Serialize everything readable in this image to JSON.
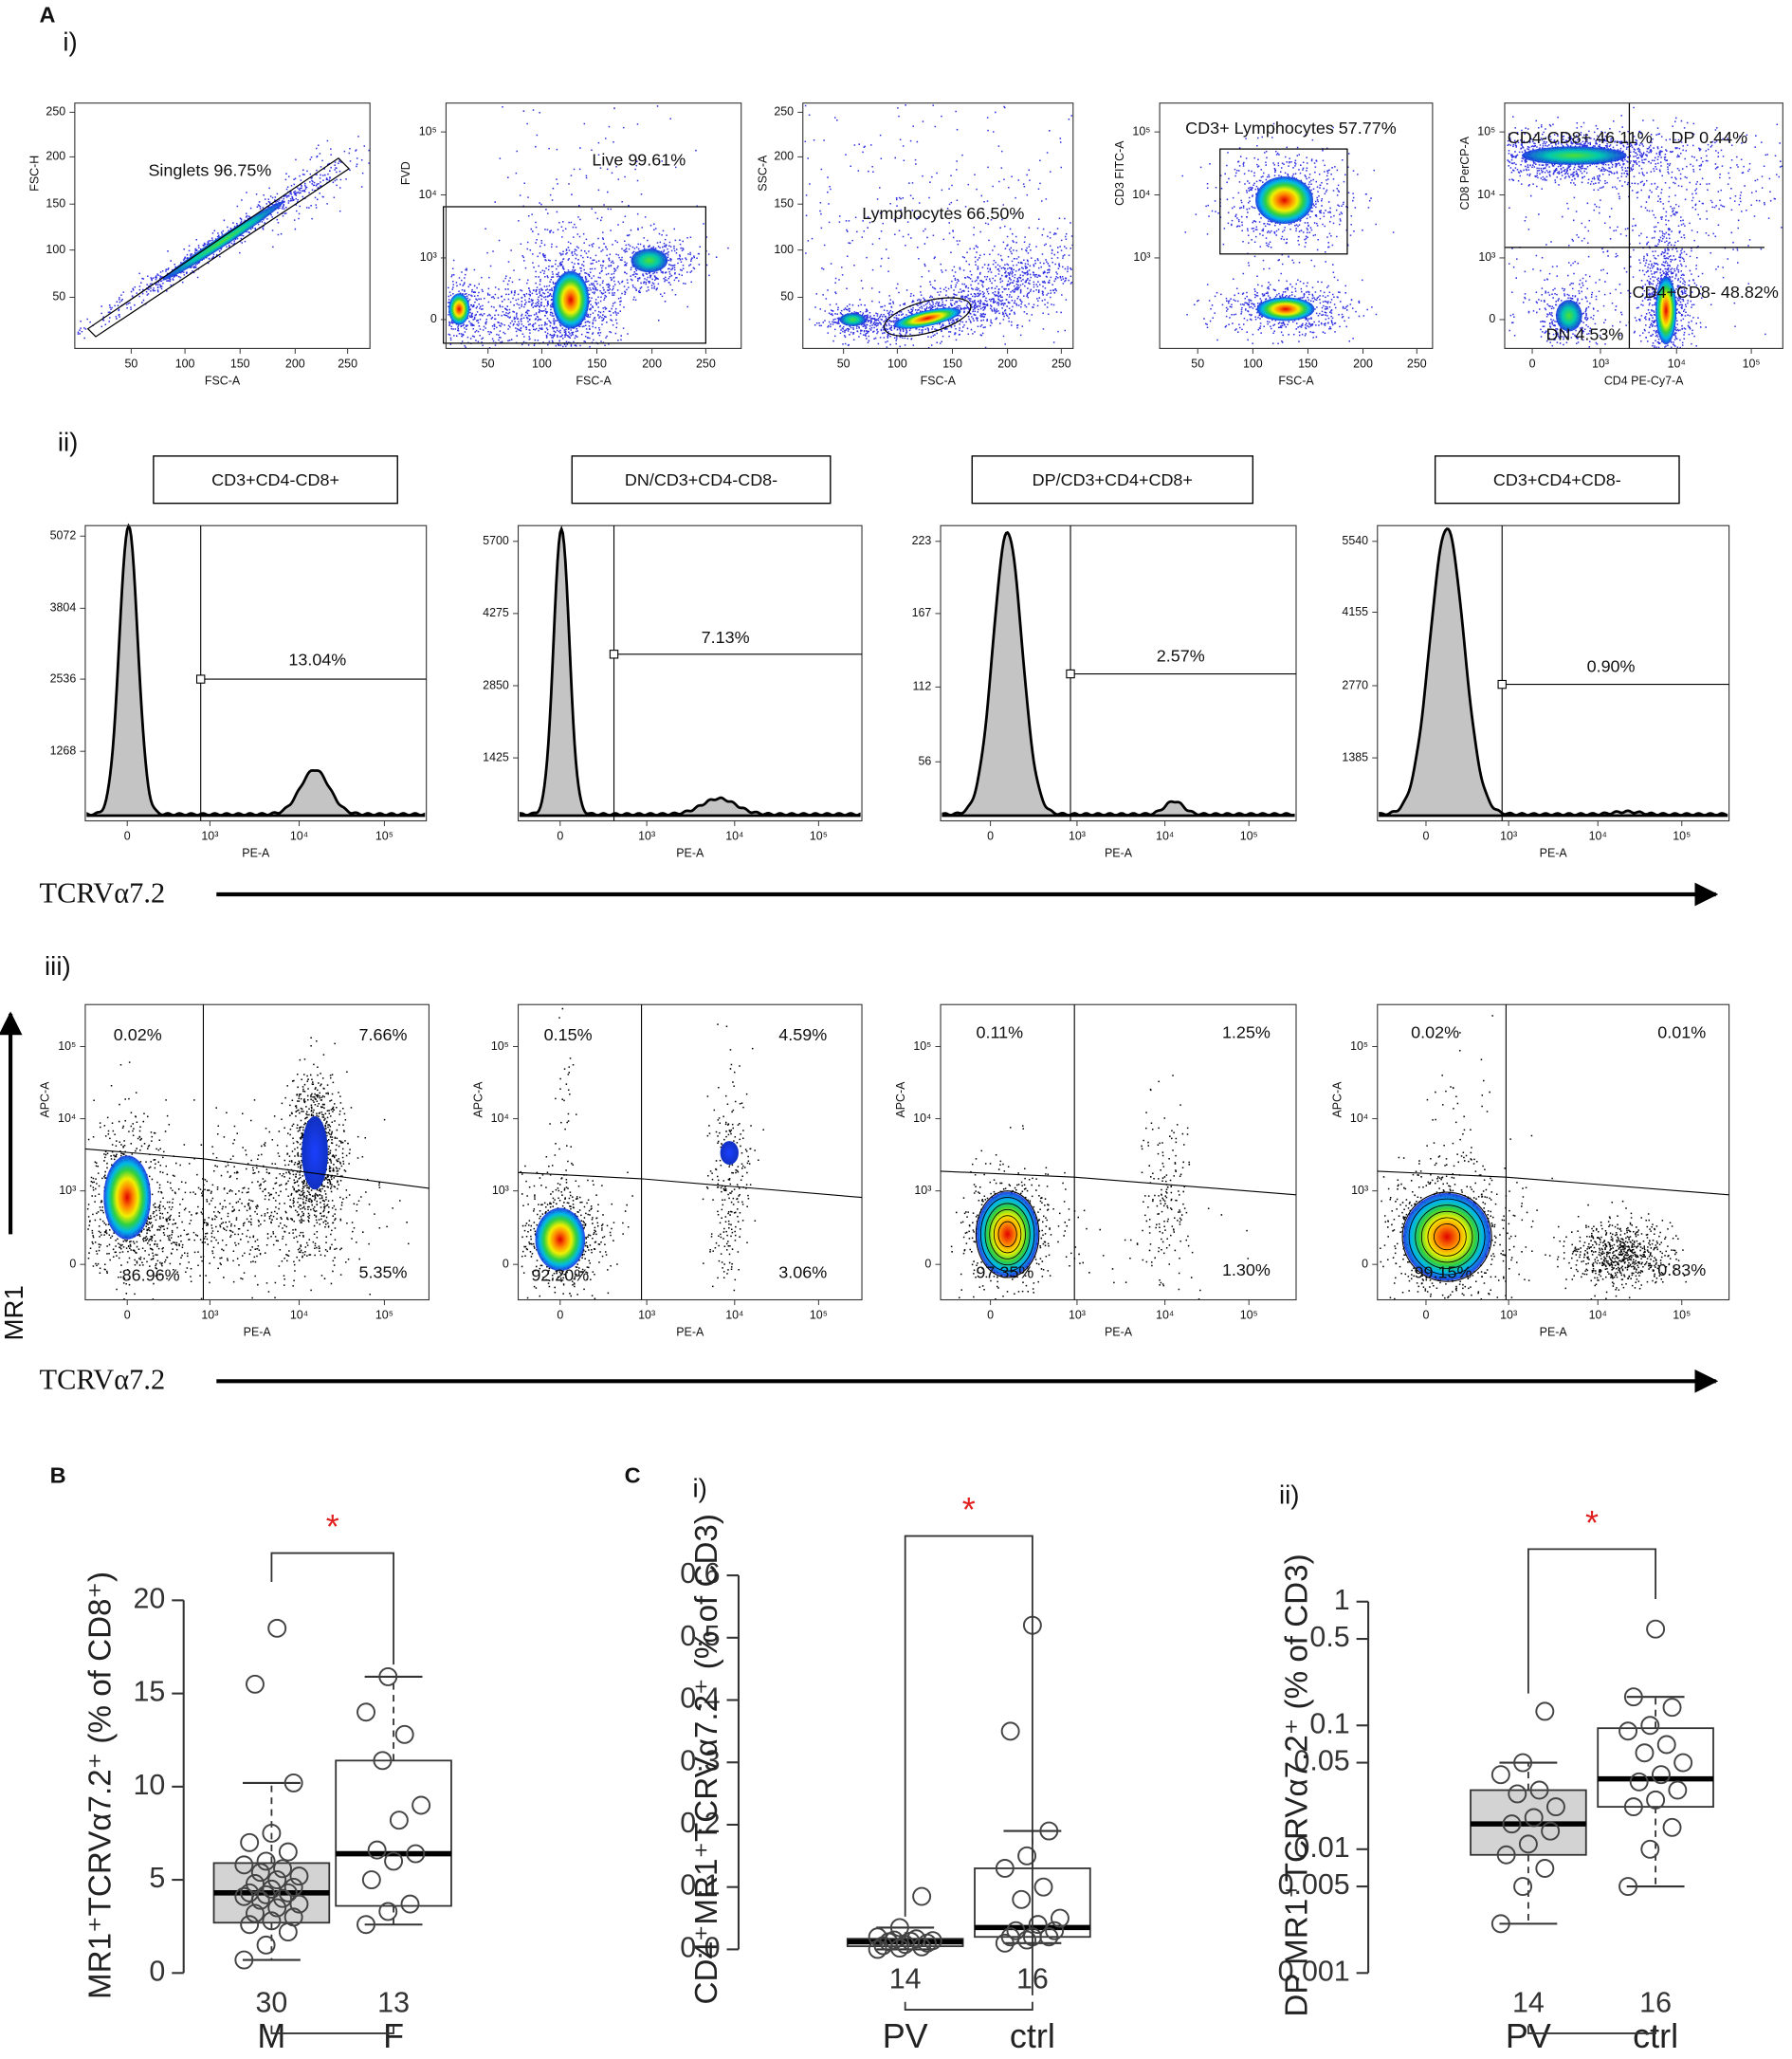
{
  "panel_a": {
    "label": "A",
    "row_i": {
      "label": "i)",
      "plots": [
        {
          "x_label": "FSC-A",
          "y_label": "FSC-H",
          "x_ticks": [
            "50",
            "100",
            "150",
            "200",
            "250"
          ],
          "y_ticks": [
            "50",
            "100",
            "150",
            "200",
            "250"
          ],
          "gates": [
            "Singlets 96.75%"
          ]
        },
        {
          "x_label": "FSC-A",
          "y_label": "FVD",
          "x_ticks": [
            "50",
            "100",
            "150",
            "200",
            "250"
          ],
          "y_ticks": [
            "0",
            "10³",
            "10⁴",
            "10⁵"
          ],
          "gates": [
            "Live 99.61%"
          ]
        },
        {
          "x_label": "FSC-A",
          "y_label": "SSC-A",
          "x_ticks": [
            "50",
            "100",
            "150",
            "200",
            "250"
          ],
          "y_ticks": [
            "50",
            "100",
            "150",
            "200",
            "250"
          ],
          "gates": [
            "Lymphocytes 66.50%"
          ]
        },
        {
          "x_label": "FSC-A",
          "y_label": "CD3 FITC-A",
          "x_ticks": [
            "50",
            "100",
            "150",
            "200",
            "250"
          ],
          "y_ticks": [
            "10³",
            "10⁴",
            "10⁵"
          ],
          "gates": [
            "CD3+ Lymphocytes 57.77%"
          ]
        },
        {
          "x_label": "CD4 PE-Cy7-A",
          "y_label": "CD8 PerCP-A",
          "x_ticks": [
            "0",
            "10³",
            "10⁴",
            "10⁵"
          ],
          "y_ticks": [
            "0",
            "10³",
            "10⁴",
            "10⁵"
          ],
          "gates": [
            "CD4-CD8+ 46.11%",
            "DP 0.44%",
            "CD4+CD8- 48.82%",
            "DN 4.53%"
          ]
        }
      ]
    },
    "row_ii": {
      "label": "ii)",
      "axis_label": "TCRVα7.2",
      "plots": [
        {
          "title": "CD3+CD4-CD8+",
          "x_label": "PE-A",
          "x_ticks": [
            "0",
            "10³",
            "10⁴",
            "10⁵"
          ],
          "y_ticks": [
            "1268",
            "2536",
            "3804",
            "5072"
          ],
          "gate": "13.04%"
        },
        {
          "title": "DN/CD3+CD4-CD8-",
          "x_label": "PE-A",
          "x_ticks": [
            "0",
            "10³",
            "10⁴",
            "10⁵"
          ],
          "y_ticks": [
            "1425",
            "2850",
            "4275",
            "5700"
          ],
          "gate": "7.13%"
        },
        {
          "title": "DP/CD3+CD4+CD8+",
          "x_label": "PE-A",
          "x_ticks": [
            "0",
            "10³",
            "10⁴",
            "10⁵"
          ],
          "y_ticks": [
            "56",
            "112",
            "167",
            "223"
          ],
          "gate": "2.57%"
        },
        {
          "title": "CD3+CD4+CD8-",
          "x_label": "PE-A",
          "x_ticks": [
            "0",
            "10³",
            "10⁴",
            "10⁵"
          ],
          "y_ticks": [
            "1385",
            "2770",
            "4155",
            "5540"
          ],
          "gate": "0.90%"
        }
      ]
    },
    "row_iii": {
      "label": "iii)",
      "x_axis_label": "TCRVα7.2",
      "y_axis_label": "MR1",
      "plots": [
        {
          "x_label": "PE-A",
          "y_label": "APC-A",
          "x_ticks": [
            "0",
            "10³",
            "10⁴",
            "10⁵"
          ],
          "y_ticks": [
            "0",
            "10³",
            "10⁴",
            "10⁵"
          ],
          "quadrants": [
            "0.02%",
            "7.66%",
            "86.96%",
            "5.35%"
          ]
        },
        {
          "x_label": "PE-A",
          "y_label": "APC-A",
          "x_ticks": [
            "0",
            "10³",
            "10⁴",
            "10⁵"
          ],
          "y_ticks": [
            "0",
            "10³",
            "10⁴",
            "10⁵"
          ],
          "quadrants": [
            "0.15%",
            "4.59%",
            "92.20%",
            "3.06%"
          ]
        },
        {
          "x_label": "PE-A",
          "y_label": "APC-A",
          "x_ticks": [
            "0",
            "10³",
            "10⁴",
            "10⁵"
          ],
          "y_ticks": [
            "0",
            "10³",
            "10⁴",
            "10⁵"
          ],
          "quadrants": [
            "0.11%",
            "1.25%",
            "97.35%",
            "1.30%"
          ]
        },
        {
          "x_label": "PE-A",
          "y_label": "APC-A",
          "x_ticks": [
            "0",
            "10³",
            "10⁴",
            "10⁵"
          ],
          "y_ticks": [
            "0",
            "10³",
            "10⁴",
            "10⁵"
          ],
          "quadrants": [
            "0.02%",
            "0.01%",
            "99.15%",
            "0.83%"
          ]
        }
      ]
    }
  },
  "panel_b": {
    "label": "B"
  },
  "panel_c": {
    "label": "C",
    "sub_labels": [
      "i)",
      "ii)"
    ]
  },
  "chart_data": [
    {
      "type": "box",
      "y_label": "MR1⁺TCRVα7.2⁺ (% of CD8⁺)",
      "categories": [
        "M",
        "F"
      ],
      "n": [
        30,
        13
      ],
      "colors": [
        "#d3d3d3",
        "#ffffff"
      ],
      "significance": "*",
      "log": false,
      "ylim": [
        0,
        20
      ],
      "yticks": [
        0,
        5,
        10,
        15,
        20
      ],
      "boxes": [
        {
          "whislo": 0.7,
          "q1": 2.7,
          "med": 4.3,
          "q3": 5.9,
          "whishi": 10.2
        },
        {
          "whislo": 2.6,
          "q1": 3.6,
          "med": 6.4,
          "q3": 11.4,
          "whishi": 15.9
        }
      ],
      "points": [
        [
          0.7,
          1.5,
          2.2,
          2.6,
          2.8,
          3.0,
          3.2,
          3.5,
          3.7,
          3.9,
          4.0,
          4.1,
          4.2,
          4.3,
          4.3,
          4.5,
          4.6,
          4.8,
          5.0,
          5.2,
          5.4,
          5.6,
          5.8,
          6.0,
          6.5,
          7.0,
          7.5,
          10.2,
          15.5,
          18.5
        ],
        [
          2.6,
          3.3,
          3.7,
          5.0,
          6.0,
          6.4,
          6.6,
          8.2,
          9.0,
          11.4,
          12.8,
          14.0,
          15.9
        ]
      ]
    },
    {
      "type": "box",
      "y_label": "CD4⁺MR1⁺TCRVα7.2⁺ (% of CD3)",
      "categories": [
        "PV",
        "ctrl"
      ],
      "n": [
        14,
        16
      ],
      "colors": [
        "#ffffff",
        "#ffffff"
      ],
      "significance": "*",
      "log": false,
      "ylim": [
        0,
        0.6
      ],
      "yticks": [
        {
          "value": 0,
          "label": "0.0"
        },
        0.1,
        0.2,
        0.3,
        0.4,
        0.5,
        0.6
      ],
      "boxes": [
        {
          "whislo": 0.0,
          "q1": 0.005,
          "med": 0.012,
          "q3": 0.017,
          "whishi": 0.035
        },
        {
          "whislo": 0.01,
          "q1": 0.02,
          "med": 0.035,
          "q3": 0.13,
          "whishi": 0.19
        }
      ],
      "points": [
        [
          0.0,
          0.002,
          0.004,
          0.006,
          0.008,
          0.01,
          0.012,
          0.013,
          0.014,
          0.015,
          0.017,
          0.02,
          0.035,
          0.085
        ],
        [
          0.01,
          0.015,
          0.02,
          0.02,
          0.02,
          0.03,
          0.03,
          0.04,
          0.05,
          0.08,
          0.1,
          0.13,
          0.15,
          0.19,
          0.35,
          0.52
        ]
      ]
    },
    {
      "type": "box",
      "y_label": "DP MR1⁺TCRVα7.2⁺ (% of CD3)",
      "categories": [
        "PV",
        "ctrl"
      ],
      "n": [
        14,
        16
      ],
      "colors": [
        "#d3d3d3",
        "#ffffff"
      ],
      "significance": "*",
      "log": true,
      "ylim": [
        0.001,
        1
      ],
      "yticks": [
        0.001,
        0.005,
        0.01,
        0.05,
        0.1,
        0.5,
        1
      ],
      "boxes": [
        {
          "whislo": 0.0025,
          "q1": 0.009,
          "med": 0.016,
          "q3": 0.03,
          "whishi": 0.05
        },
        {
          "whislo": 0.005,
          "q1": 0.022,
          "med": 0.037,
          "q3": 0.095,
          "whishi": 0.17
        }
      ],
      "points": [
        [
          0.0025,
          0.005,
          0.007,
          0.009,
          0.011,
          0.014,
          0.016,
          0.018,
          0.022,
          0.028,
          0.03,
          0.04,
          0.05,
          0.13
        ],
        [
          0.005,
          0.01,
          0.015,
          0.022,
          0.025,
          0.03,
          0.035,
          0.04,
          0.05,
          0.06,
          0.07,
          0.09,
          0.1,
          0.14,
          0.17,
          0.6
        ]
      ]
    }
  ]
}
